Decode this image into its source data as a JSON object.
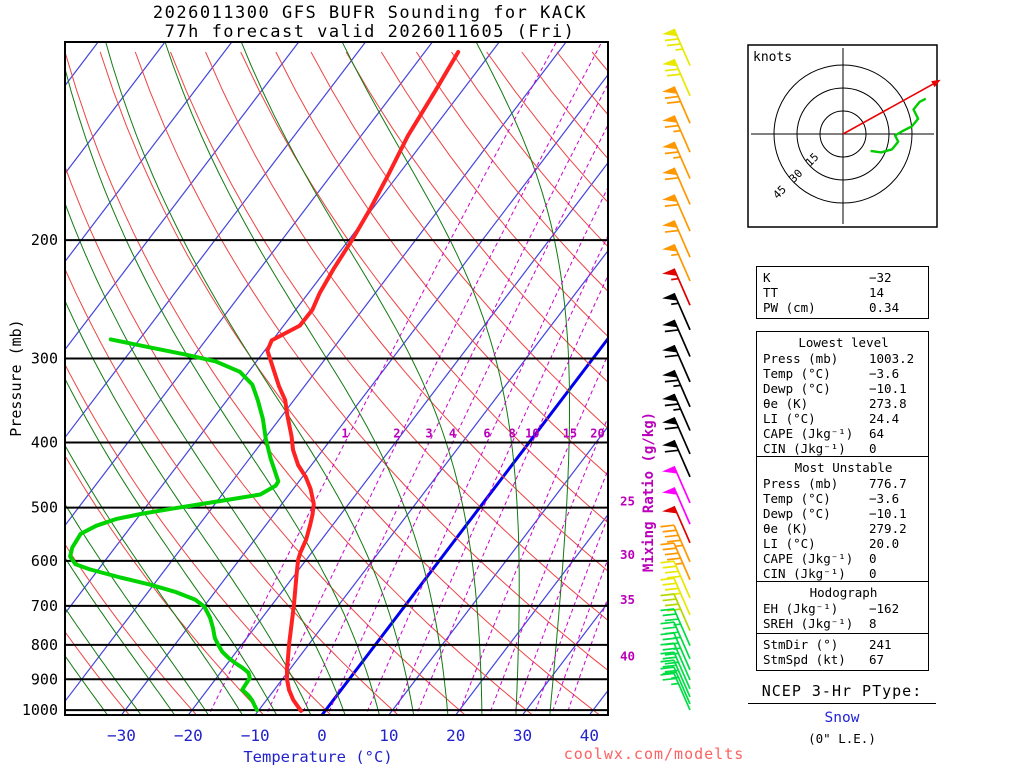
{
  "title": {
    "line1": "2026011300 GFS BUFR Sounding for KACK",
    "line2": "77h forecast valid 2026011605 (Fri)"
  },
  "axes": {
    "pressure_label": "Pressure (mb)",
    "temp_label": "Temperature (°C)",
    "mixing_label": "Mixing Ratio (g/kg)"
  },
  "watermark": "coolwx.com/modelts",
  "hodograph_panel": {
    "knots_label": "knots",
    "ring_labels": [
      "15",
      "30",
      "45"
    ]
  },
  "stats": {
    "indices": [
      {
        "l": "K",
        "v": "−32"
      },
      {
        "l": "TT",
        "v": "14"
      },
      {
        "l": "PW (cm)",
        "v": "0.34"
      }
    ],
    "lowest": {
      "title": "Lowest level",
      "rows": [
        {
          "l": "Press (mb)",
          "v": "1003.2"
        },
        {
          "l": "Temp (°C)",
          "v": "−3.6"
        },
        {
          "l": "Dewp (°C)",
          "v": "−10.1"
        },
        {
          "l": "θe (K)",
          "v": "273.8"
        },
        {
          "l": "LI (°C)",
          "v": "24.4"
        },
        {
          "l": "CAPE (Jkg⁻¹)",
          "v": "64"
        },
        {
          "l": "CIN (Jkg⁻¹)",
          "v": "0"
        }
      ]
    },
    "mu": {
      "title": "Most Unstable",
      "rows": [
        {
          "l": "Press (mb)",
          "v": "776.7"
        },
        {
          "l": "Temp (°C)",
          "v": "−3.6"
        },
        {
          "l": "Dewp (°C)",
          "v": "−10.1"
        },
        {
          "l": "θe (K)",
          "v": "279.2"
        },
        {
          "l": "LI (°C)",
          "v": "20.0"
        },
        {
          "l": "CAPE (Jkg⁻¹)",
          "v": "0"
        },
        {
          "l": "CIN (Jkg⁻¹)",
          "v": "0"
        }
      ]
    },
    "hodo": {
      "title": "Hodograph",
      "rows": [
        {
          "l": "EH (Jkg⁻¹)",
          "v": "−162"
        },
        {
          "l": "SREH (Jkg⁻¹)",
          "v": "8"
        }
      ],
      "rows2": [
        {
          "l": "StmDir (°)",
          "v": "241"
        },
        {
          "l": "StmSpd (kt)",
          "v": "67"
        }
      ]
    }
  },
  "ptype": {
    "title": "NCEP 3-Hr PType:",
    "value": "Snow",
    "extra": "(0\" L.E.)"
  },
  "chart_data": {
    "type": "skewt-logp-sounding",
    "station": "KACK",
    "pressure_range_mb": [
      100,
      1016
    ],
    "pressure_ticks_mb": [
      200,
      300,
      400,
      500,
      600,
      700,
      800,
      900,
      1000
    ],
    "temp_ticks_c": [
      -30,
      -20,
      -10,
      0,
      10,
      20,
      30,
      40
    ],
    "isotherm_range_c": [
      -120,
      40
    ],
    "isotherm_step_c": 10,
    "highlight_isotherm_c": 0,
    "dry_adiabat_range_c": [
      -40,
      190
    ],
    "dry_adiabat_step_c": 10,
    "moist_adiabat_starts_c": [
      -30,
      -25,
      -20,
      -15,
      -10,
      -5,
      0,
      5,
      10,
      15,
      20,
      25,
      30,
      35
    ],
    "mixing_ratio_lines_gkg": [
      1,
      2,
      3,
      4,
      6,
      8,
      10,
      15,
      20,
      25,
      30,
      35,
      40
    ],
    "mixing_ratio_inner_label_p_mb": 400,
    "mixing_ratio_edge_labels": {
      "25": 500,
      "30": 600,
      "35": 700,
      "40": 850
    },
    "temperature_profile_p_c": [
      [
        1003,
        -3.6
      ],
      [
        966,
        -6.0
      ],
      [
        933,
        -7.8
      ],
      [
        902,
        -9.2
      ],
      [
        871,
        -10.4
      ],
      [
        836,
        -11.6
      ],
      [
        800,
        -12.9
      ],
      [
        772,
        -13.9
      ],
      [
        734,
        -15.3
      ],
      [
        698,
        -16.7
      ],
      [
        661,
        -18.3
      ],
      [
        628,
        -19.8
      ],
      [
        598,
        -21.2
      ],
      [
        583,
        -21.7
      ],
      [
        558,
        -22.3
      ],
      [
        530,
        -23.4
      ],
      [
        512,
        -24.2
      ],
      [
        494,
        -25.2
      ],
      [
        469,
        -27.4
      ],
      [
        450,
        -29.5
      ],
      [
        432,
        -32.0
      ],
      [
        410,
        -34.5
      ],
      [
        392,
        -36.2
      ],
      [
        364,
        -39.3
      ],
      [
        346,
        -41.3
      ],
      [
        330,
        -43.8
      ],
      [
        315,
        -46.0
      ],
      [
        302,
        -48.0
      ],
      [
        292,
        -49.6
      ],
      [
        282,
        -50.1
      ],
      [
        268,
        -47.6
      ],
      [
        254,
        -47.5
      ],
      [
        240,
        -48.3
      ],
      [
        220,
        -49.0
      ],
      [
        200,
        -49.5
      ],
      [
        180,
        -50.3
      ],
      [
        160,
        -51.5
      ],
      [
        140,
        -53.0
      ],
      [
        120,
        -54.0
      ],
      [
        105,
        -55.0
      ]
    ],
    "dewpoint_profile_p_c": [
      [
        1000,
        -10.3
      ],
      [
        966,
        -12.2
      ],
      [
        950,
        -13.3
      ],
      [
        933,
        -14.8
      ],
      [
        917,
        -14.9
      ],
      [
        896,
        -15.0
      ],
      [
        880,
        -15.8
      ],
      [
        865,
        -17.3
      ],
      [
        851,
        -18.9
      ],
      [
        836,
        -20.5
      ],
      [
        819,
        -22.1
      ],
      [
        800,
        -23.5
      ],
      [
        781,
        -24.8
      ],
      [
        755,
        -26.2
      ],
      [
        729,
        -27.8
      ],
      [
        702,
        -29.9
      ],
      [
        685,
        -32.1
      ],
      [
        667,
        -36.0
      ],
      [
        651,
        -40.5
      ],
      [
        635,
        -45.8
      ],
      [
        618,
        -51.2
      ],
      [
        607,
        -54.0
      ],
      [
        591,
        -55.7
      ],
      [
        573,
        -56.4
      ],
      [
        547,
        -56.7
      ],
      [
        532,
        -55.3
      ],
      [
        520,
        -53.1
      ],
      [
        511,
        -50.0
      ],
      [
        502,
        -46.0
      ],
      [
        494,
        -42.1
      ],
      [
        486,
        -38.2
      ],
      [
        478,
        -34.3
      ],
      [
        464,
        -33.0
      ],
      [
        457,
        -33.1
      ],
      [
        423,
        -36.8
      ],
      [
        395,
        -39.8
      ],
      [
        369,
        -42.5
      ],
      [
        346,
        -45.4
      ],
      [
        328,
        -48.0
      ],
      [
        314,
        -51.3
      ],
      [
        303,
        -56.1
      ],
      [
        296,
        -61.4
      ],
      [
        289,
        -67.4
      ],
      [
        281,
        -74.3
      ]
    ],
    "wind_barbs": [
      [
        110,
        75,
        "#e8e800"
      ],
      [
        122,
        70,
        "#e8e800"
      ],
      [
        134,
        70,
        "#ff9800"
      ],
      [
        148,
        65,
        "#ff9800"
      ],
      [
        162,
        65,
        "#ff9800"
      ],
      [
        177,
        60,
        "#ff9800"
      ],
      [
        194,
        60,
        "#ff9800"
      ],
      [
        212,
        60,
        "#ff9800"
      ],
      [
        230,
        55,
        "#ff9800"
      ],
      [
        250,
        55,
        "#e00000"
      ],
      [
        272,
        55,
        "#000000"
      ],
      [
        298,
        60,
        "#000000"
      ],
      [
        325,
        60,
        "#000000"
      ],
      [
        354,
        65,
        "#000000"
      ],
      [
        384,
        65,
        "#000000"
      ],
      [
        416,
        60,
        "#000000"
      ],
      [
        450,
        60,
        "#000000"
      ],
      [
        492,
        50,
        "#ff00ff"
      ],
      [
        529,
        50,
        "#ff00ff"
      ],
      [
        564,
        50,
        "#e00000"
      ],
      [
        602,
        45,
        "#ff9800"
      ],
      [
        640,
        45,
        "#ff9800"
      ],
      [
        681,
        40,
        "#e8e800"
      ],
      [
        722,
        40,
        "#e8e800"
      ],
      [
        762,
        40,
        "#b4d800"
      ],
      [
        802,
        35,
        "#00dd44"
      ],
      [
        839,
        35,
        "#00dd44"
      ],
      [
        871,
        35,
        "#00dd44"
      ],
      [
        902,
        30,
        "#00dd44"
      ],
      [
        930,
        30,
        "#00dd44"
      ],
      [
        956,
        30,
        "#00dd44"
      ],
      [
        979,
        25,
        "#00dd44"
      ],
      [
        1000,
        25,
        "#00dd44"
      ]
    ],
    "hodograph": {
      "rings_kt": [
        15,
        30,
        45
      ],
      "trace_uv_kt": [
        [
          18,
          -11
        ],
        [
          25,
          -12
        ],
        [
          32,
          -10
        ],
        [
          36,
          -5
        ],
        [
          34,
          -1
        ],
        [
          39,
          2
        ],
        [
          45,
          5
        ],
        [
          49,
          10
        ],
        [
          46,
          16
        ],
        [
          50,
          21
        ],
        [
          54,
          23
        ]
      ],
      "storm_dir_deg": 241,
      "storm_speed_kt": 67
    }
  }
}
